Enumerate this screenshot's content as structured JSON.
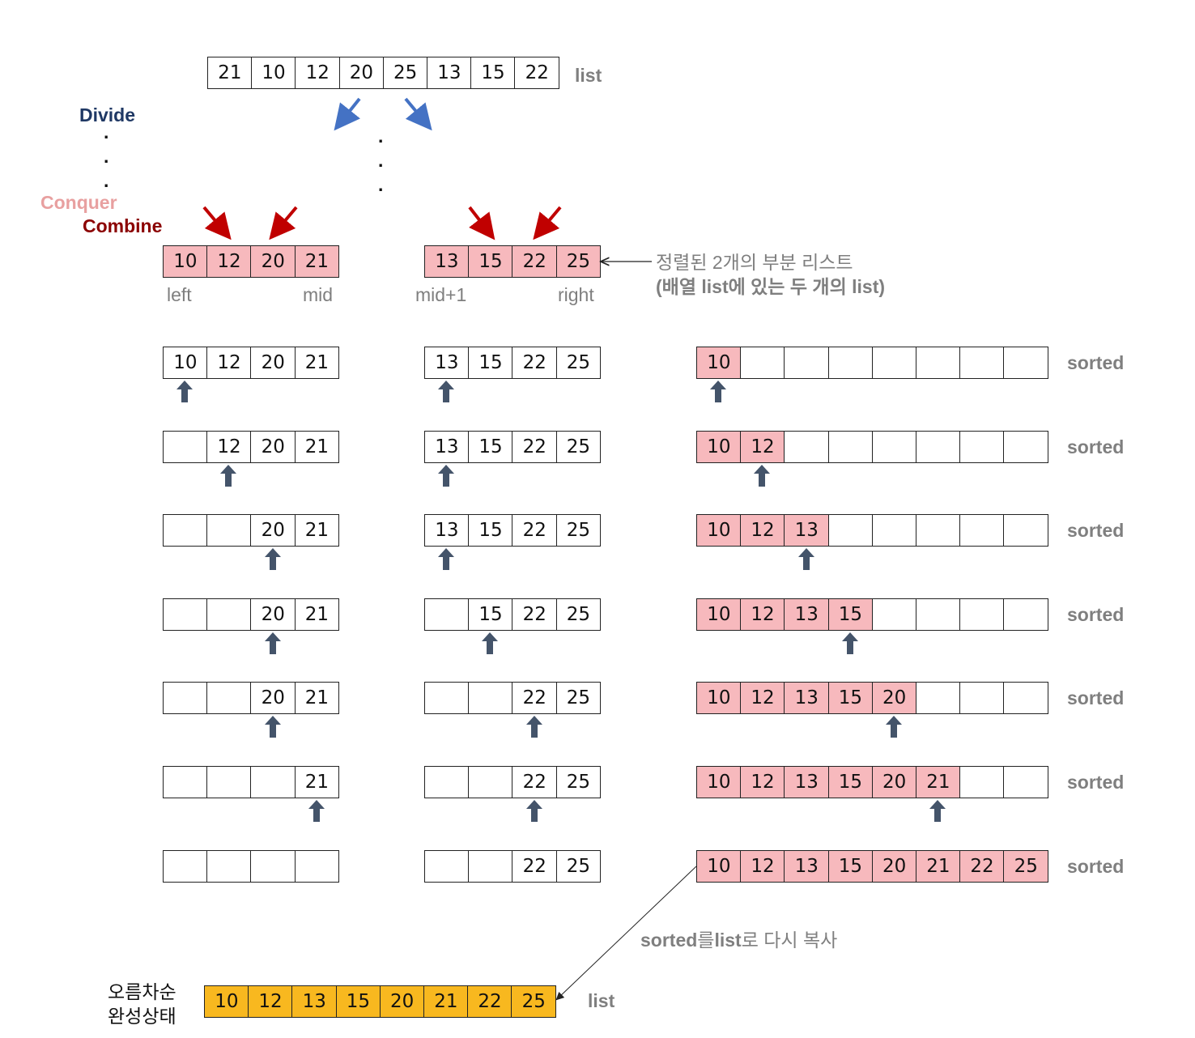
{
  "top_list": {
    "values": [
      "21",
      "10",
      "12",
      "20",
      "25",
      "13",
      "15",
      "22"
    ],
    "label": "list"
  },
  "phase_labels": {
    "divide": "Divide",
    "conquer": "Conquer",
    "combine": "Combine",
    "dots": ".",
    "colors": {
      "divide": "#1f3864",
      "conquer": "#e8a0a0",
      "combine": "#8b0000"
    }
  },
  "sublists": {
    "left": {
      "values": [
        "10",
        "12",
        "20",
        "21"
      ],
      "start_label": "left",
      "end_label": "mid"
    },
    "right": {
      "values": [
        "13",
        "15",
        "22",
        "25"
      ],
      "start_label": "mid+1",
      "end_label": "right"
    },
    "note_line1": "정렬된 2개의 부분 리스트",
    "note_line2": "(배열 list에 있는 두 개의 list)"
  },
  "steps": [
    {
      "left": [
        "10",
        "12",
        "20",
        "21"
      ],
      "right": [
        "13",
        "15",
        "22",
        "25"
      ],
      "sorted": [
        "10",
        "",
        "",
        "",
        "",
        "",
        "",
        ""
      ],
      "left_ptr": 0,
      "right_ptr": 0,
      "sorted_ptr": 0,
      "label": "sorted"
    },
    {
      "left": [
        "",
        "12",
        "20",
        "21"
      ],
      "right": [
        "13",
        "15",
        "22",
        "25"
      ],
      "sorted": [
        "10",
        "12",
        "",
        "",
        "",
        "",
        "",
        ""
      ],
      "left_ptr": 1,
      "right_ptr": 0,
      "sorted_ptr": 1,
      "label": "sorted"
    },
    {
      "left": [
        "",
        "",
        "20",
        "21"
      ],
      "right": [
        "13",
        "15",
        "22",
        "25"
      ],
      "sorted": [
        "10",
        "12",
        "13",
        "",
        "",
        "",
        "",
        ""
      ],
      "left_ptr": 2,
      "right_ptr": 0,
      "sorted_ptr": 2,
      "label": "sorted"
    },
    {
      "left": [
        "",
        "",
        "20",
        "21"
      ],
      "right": [
        "",
        "15",
        "22",
        "25"
      ],
      "sorted": [
        "10",
        "12",
        "13",
        "15",
        "",
        "",
        "",
        ""
      ],
      "left_ptr": 2,
      "right_ptr": 1,
      "sorted_ptr": 3,
      "label": "sorted"
    },
    {
      "left": [
        "",
        "",
        "20",
        "21"
      ],
      "right": [
        "",
        "",
        "22",
        "25"
      ],
      "sorted": [
        "10",
        "12",
        "13",
        "15",
        "20",
        "",
        "",
        ""
      ],
      "left_ptr": 2,
      "right_ptr": 2,
      "sorted_ptr": 4,
      "label": "sorted"
    },
    {
      "left": [
        "",
        "",
        "",
        "21"
      ],
      "right": [
        "",
        "",
        "22",
        "25"
      ],
      "sorted": [
        "10",
        "12",
        "13",
        "15",
        "20",
        "21",
        "",
        ""
      ],
      "left_ptr": 3,
      "right_ptr": 2,
      "sorted_ptr": 5,
      "label": "sorted"
    },
    {
      "left": [
        "",
        "",
        "",
        ""
      ],
      "right": [
        "",
        "",
        "22",
        "25"
      ],
      "sorted": [
        "10",
        "12",
        "13",
        "15",
        "20",
        "21",
        "22",
        "25"
      ],
      "left_ptr": null,
      "right_ptr": null,
      "sorted_ptr": null,
      "label": "sorted"
    }
  ],
  "copy_note": {
    "bold_a": "sorted",
    "plain_a": "를",
    "bold_b": "list",
    "plain_b": "로 다시 복사"
  },
  "final": {
    "caption_line1": "오름차순",
    "caption_line2": "완성상태",
    "values": [
      "10",
      "12",
      "13",
      "15",
      "20",
      "21",
      "22",
      "25"
    ],
    "label": "list"
  },
  "colors": {
    "pink": "#f7b9bd",
    "gold": "#f8b81f",
    "blue_arrow": "#4472c4",
    "red_arrow": "#c00000",
    "pointer": "#44546a"
  }
}
